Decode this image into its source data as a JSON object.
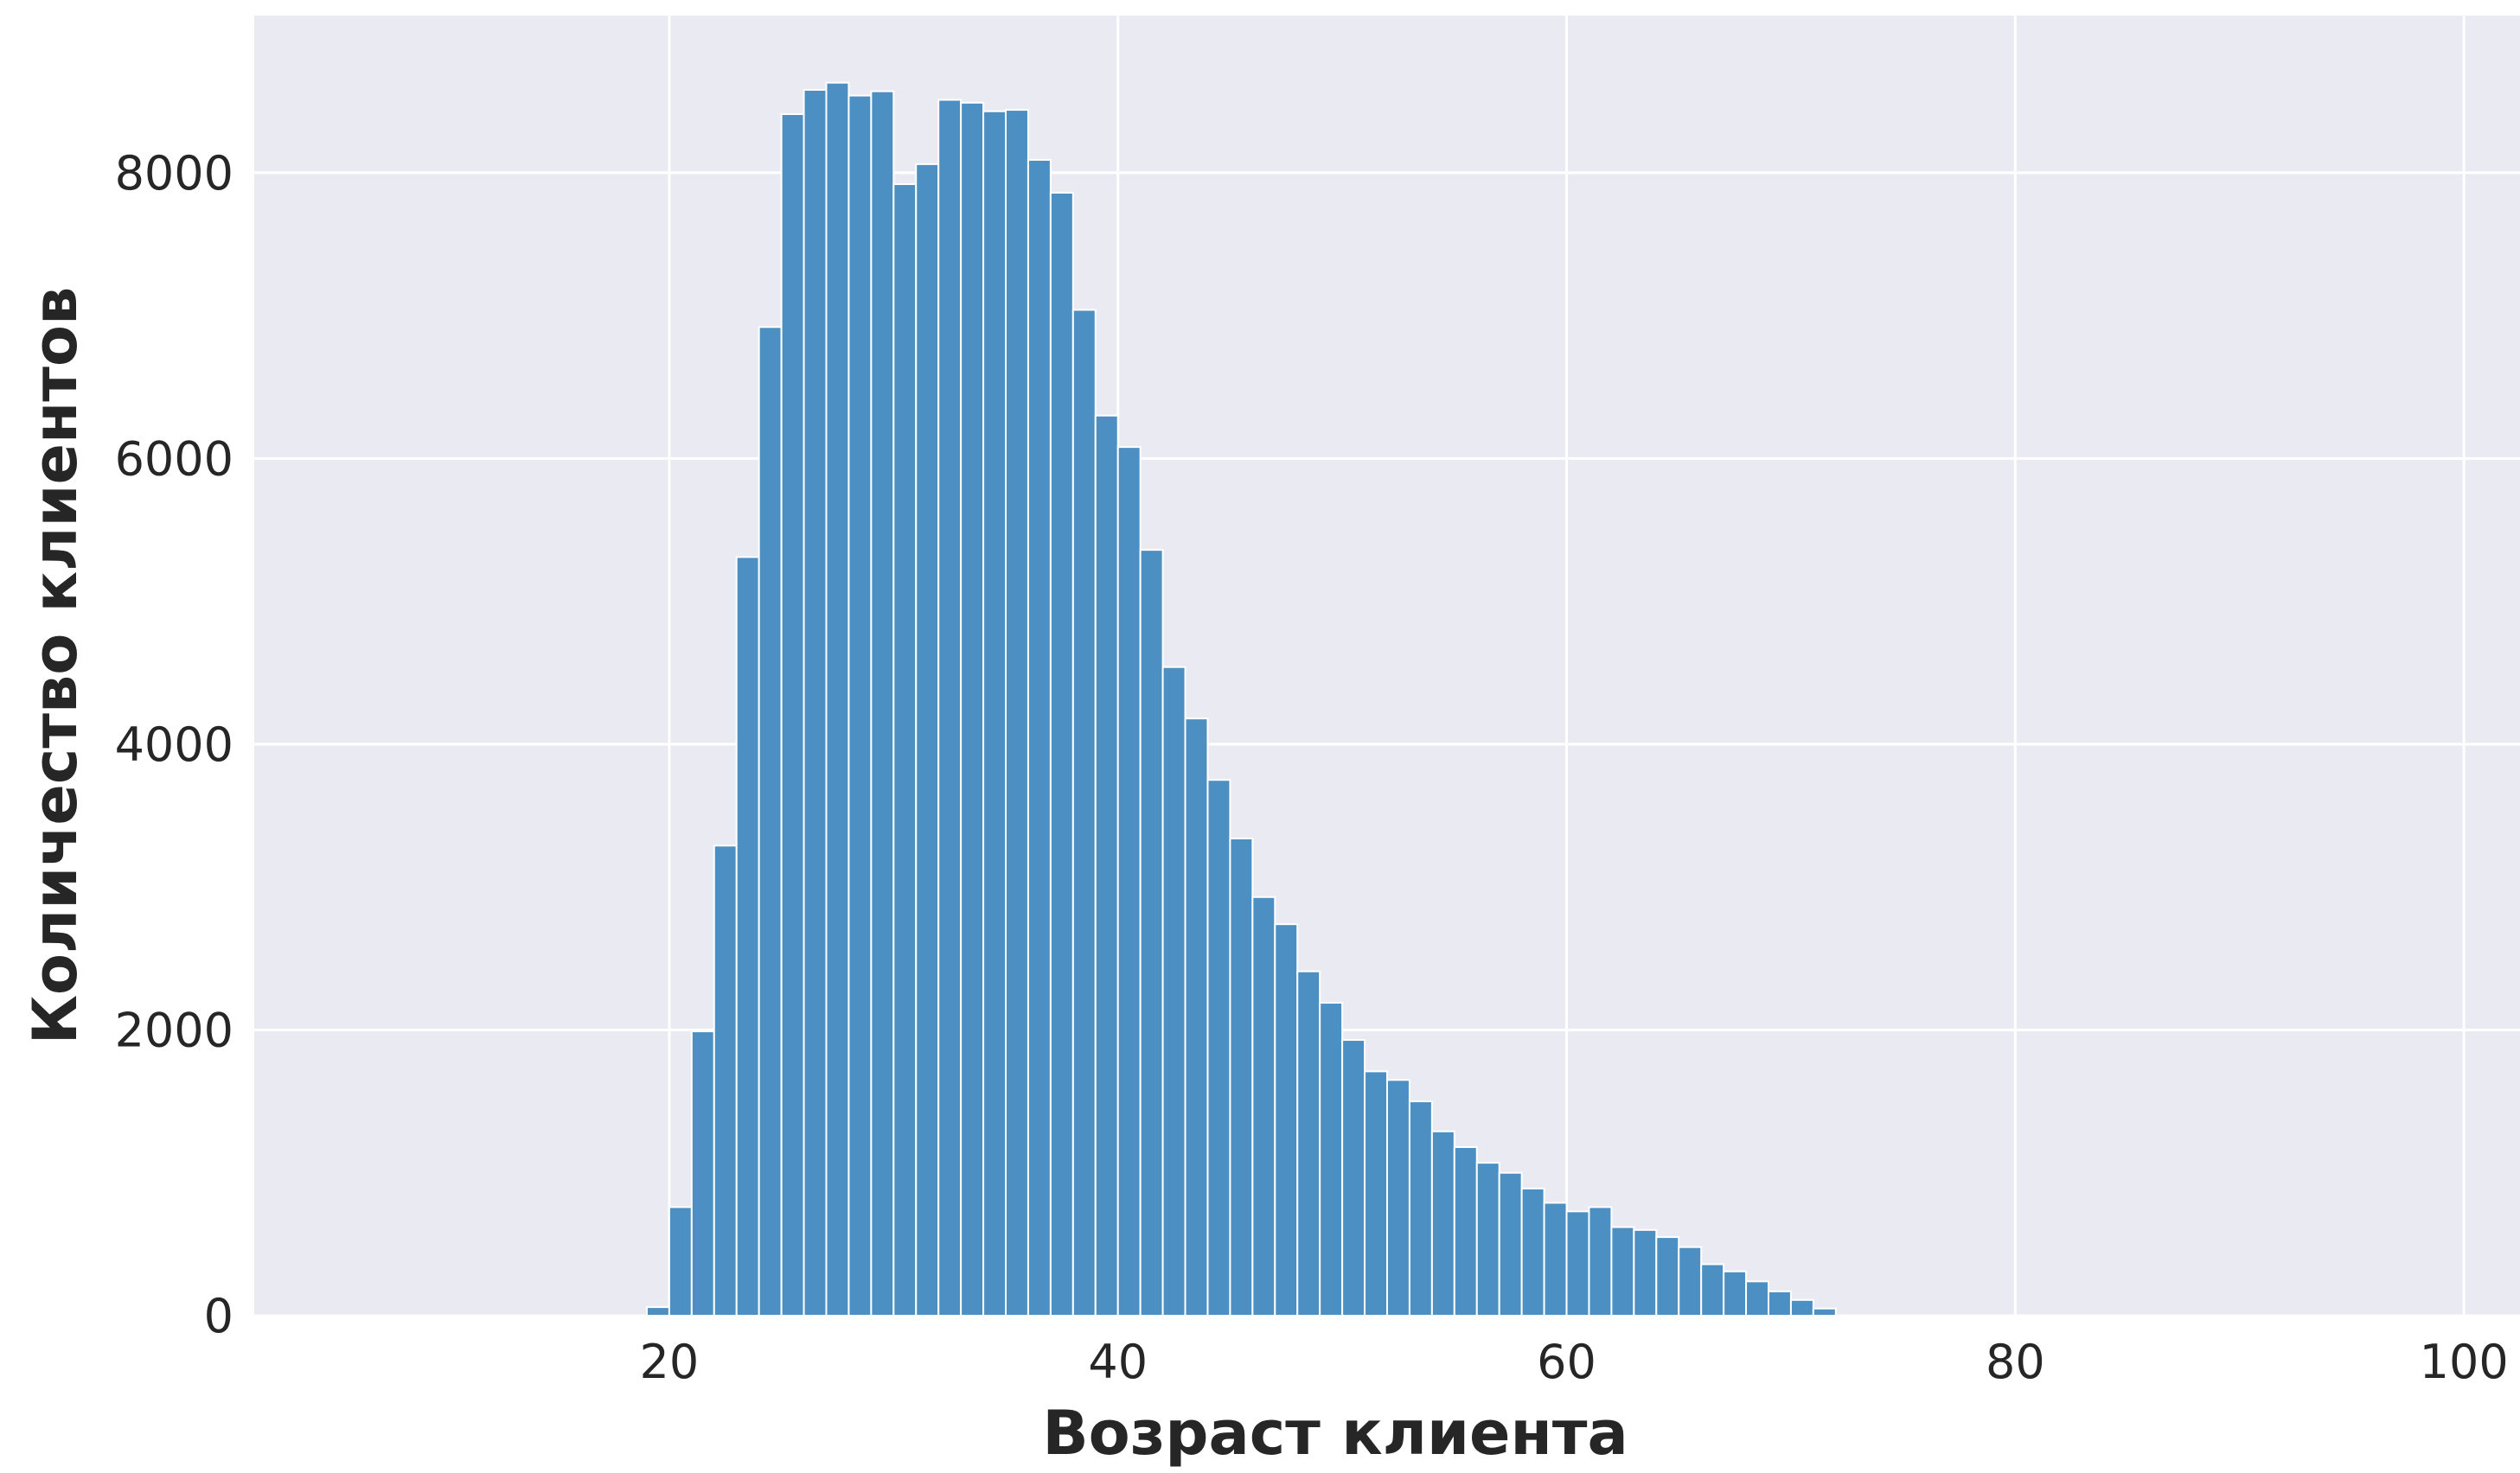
{
  "chart_data": {
    "type": "bar",
    "title": "",
    "xlabel": "Возраст клиента",
    "ylabel": "Количество клиентов",
    "xlim": [
      1.5,
      102.5
    ],
    "ylim": [
      0,
      9100
    ],
    "grid": true,
    "style": {
      "background": "#EAEAF2",
      "grid_color": "#FFFFFF",
      "bar_color": "#4C8FC2",
      "bar_edge": "#FFFFFF"
    },
    "x_ticks": [
      20,
      40,
      60,
      80,
      100
    ],
    "y_ticks": [
      0,
      2000,
      4000,
      6000,
      8000
    ],
    "bins": {
      "start": 19,
      "width": 1,
      "counts": [
        60,
        760,
        1990,
        3290,
        5310,
        6920,
        8410,
        8580,
        8630,
        8540,
        8570,
        7920,
        8060,
        8510,
        8490,
        8430,
        8440,
        8090,
        7860,
        7040,
        6300,
        6080,
        5360,
        4540,
        4180,
        3750,
        3340,
        2930,
        2740,
        2410,
        2190,
        1930,
        1710,
        1650,
        1500,
        1290,
        1180,
        1070,
        1000,
        890,
        790,
        730,
        760,
        620,
        600,
        550,
        480,
        360,
        310,
        240,
        170,
        110,
        50
      ]
    }
  }
}
